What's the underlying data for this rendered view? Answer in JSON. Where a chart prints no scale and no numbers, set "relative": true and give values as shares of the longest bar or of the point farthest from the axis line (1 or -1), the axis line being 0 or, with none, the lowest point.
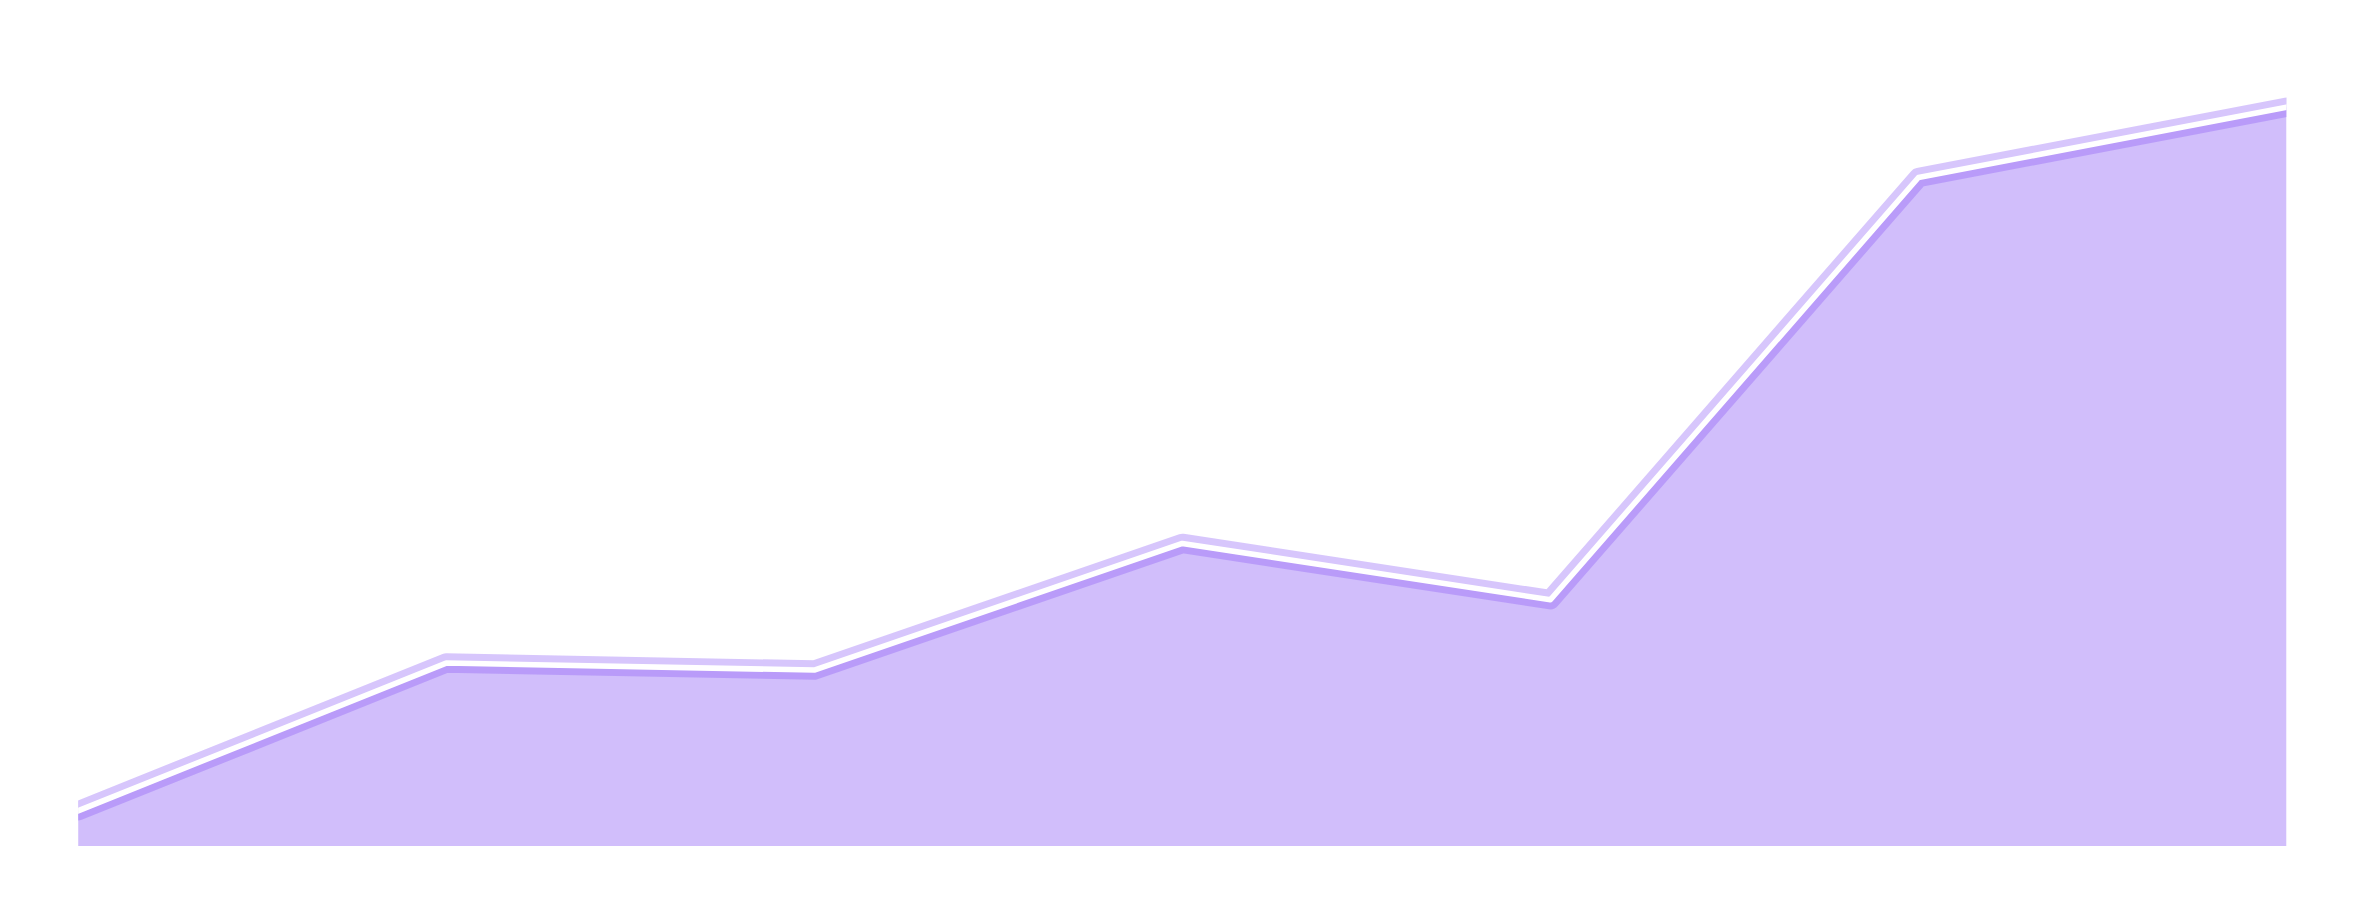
{
  "chart_data": {
    "type": "area",
    "relative": true,
    "categories": [
      null,
      null,
      null,
      null,
      null,
      null,
      null
    ],
    "series": [
      {
        "color": "#8b5cf6",
        "values": [
          0,
          0.21,
          0.2,
          0.38,
          0.3,
          0.9,
          1
        ]
      }
    ],
    "grid": false,
    "legend": false,
    "marker": "none",
    "line_style": "solid"
  }
}
